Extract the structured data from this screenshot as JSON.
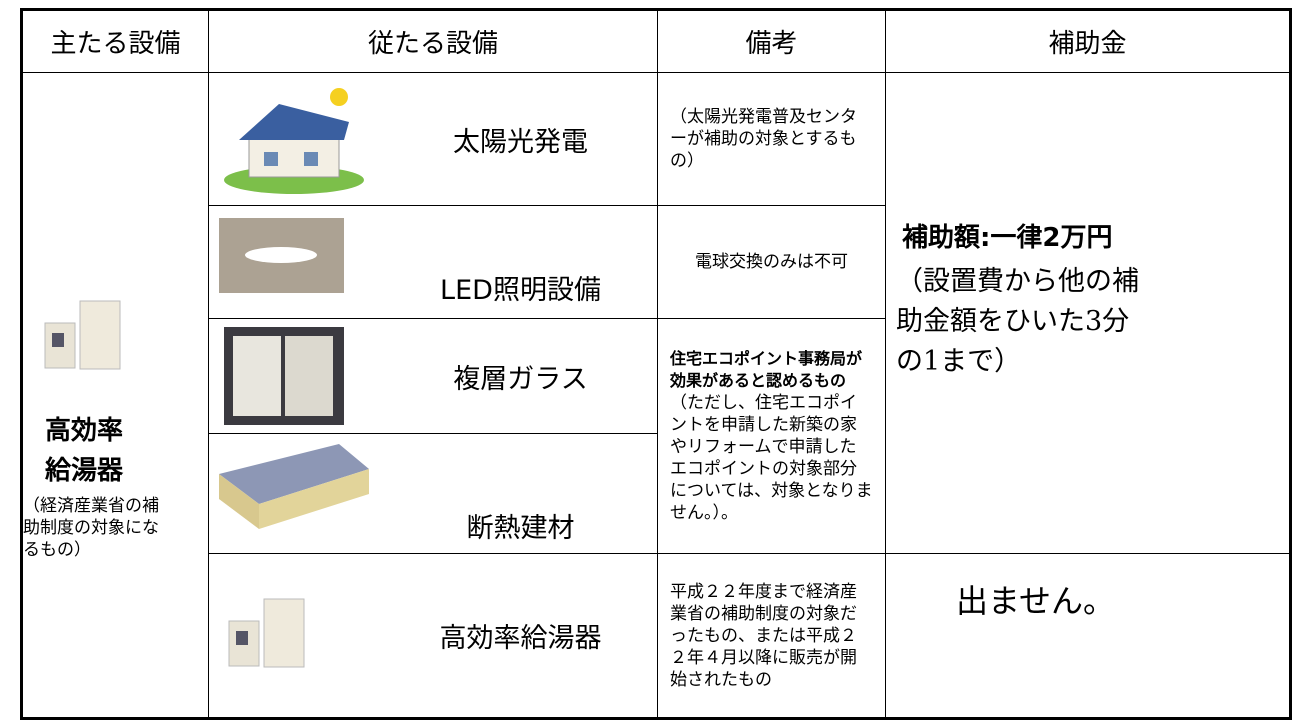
{
  "table": {
    "headers": [
      "主たる設備",
      "従たる設備",
      "備考",
      "補助金"
    ],
    "main_equipment": {
      "title_lines": [
        "高効率",
        "給湯器"
      ],
      "note": "（経済産業省の補助制度の対象になるもの）"
    },
    "rows": [
      {
        "equipment": "太陽光発電",
        "remarks": "（太陽光発電普及センターが補助の対象とするもの）"
      },
      {
        "equipment": "LED照明設備",
        "remarks": "電球交換のみは不可"
      },
      {
        "equipment": "複層ガラス"
      },
      {
        "equipment": "断熱建材"
      },
      {
        "equipment": "高効率給湯器",
        "remarks": "平成２２年度まで経済産業省の補助制度の対象だったもの、または平成２２年４月以降に販売が開始されたもの"
      }
    ],
    "shared_remarks": {
      "bold": "住宅エコポイント事務局が効果があると認めるもの",
      "text": "（ただし、住宅エコポイントを申請した新築の家やリフォームで申請したエコポイントの対象部分については、対象となりません。）。"
    },
    "subsidy": {
      "bold": "補助額:一律2万円",
      "text": "（設置費から他の補助金額をひいた3分の1まで）"
    },
    "subsidy_water_heater": "出ません。"
  }
}
